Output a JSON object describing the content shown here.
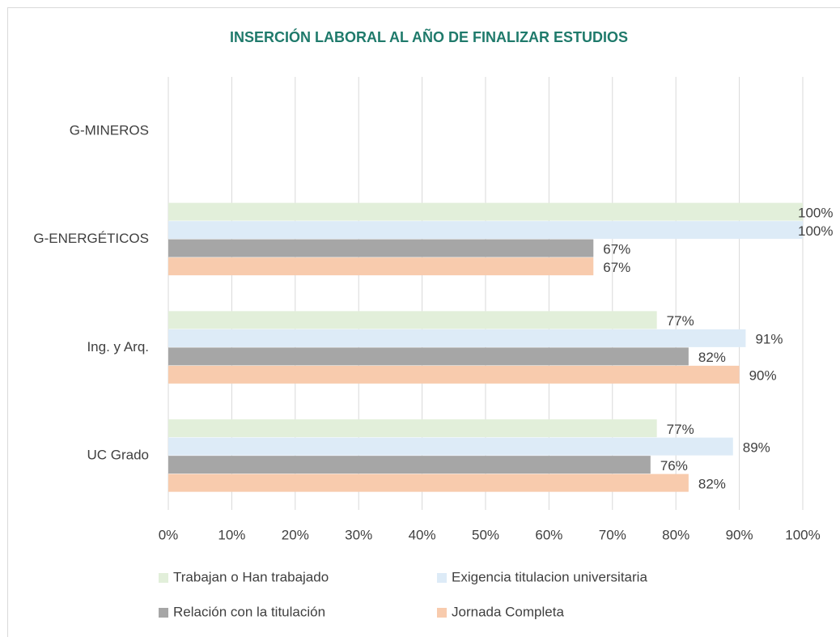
{
  "chart_data": {
    "type": "hbar",
    "title": "INSERCIÓN LABORAL AL AÑO DE FINALIZAR ESTUDIOS",
    "categories": [
      "G-MINEROS",
      "G-ENERGÉTICOS",
      "Ing. y Arq.",
      "UC Grado"
    ],
    "series": [
      {
        "name": "Trabajan o Han trabajado",
        "color": "#e2efda",
        "values": [
          null,
          100,
          77,
          77
        ],
        "value_labels": [
          null,
          "100%",
          "77%",
          "77%"
        ]
      },
      {
        "name": "Exigencia titulacion universitaria",
        "color": "#ddebf7",
        "values": [
          null,
          100,
          91,
          89
        ],
        "value_labels": [
          null,
          "100%",
          "91%",
          "89%"
        ]
      },
      {
        "name": "Relación con la titulación",
        "color": "#a6a6a6",
        "values": [
          null,
          67,
          82,
          76
        ],
        "value_labels": [
          null,
          "67%",
          "82%",
          "76%"
        ]
      },
      {
        "name": "Jornada Completa",
        "color": "#f8cbad",
        "values": [
          null,
          67,
          90,
          82
        ],
        "value_labels": [
          null,
          "67%",
          "90%",
          "82%"
        ]
      }
    ],
    "xlim": [
      0,
      100
    ],
    "xticks": [
      {
        "value": 0,
        "label": "0%"
      },
      {
        "value": 10,
        "label": "10%"
      },
      {
        "value": 20,
        "label": "20%"
      },
      {
        "value": 30,
        "label": "30%"
      },
      {
        "value": 40,
        "label": "40%"
      },
      {
        "value": 50,
        "label": "50%"
      },
      {
        "value": 60,
        "label": "60%"
      },
      {
        "value": 70,
        "label": "70%"
      },
      {
        "value": 80,
        "label": "80%"
      },
      {
        "value": 90,
        "label": "90%"
      },
      {
        "value": 100,
        "label": "100%"
      }
    ],
    "grid": true,
    "legend": "bottom"
  }
}
